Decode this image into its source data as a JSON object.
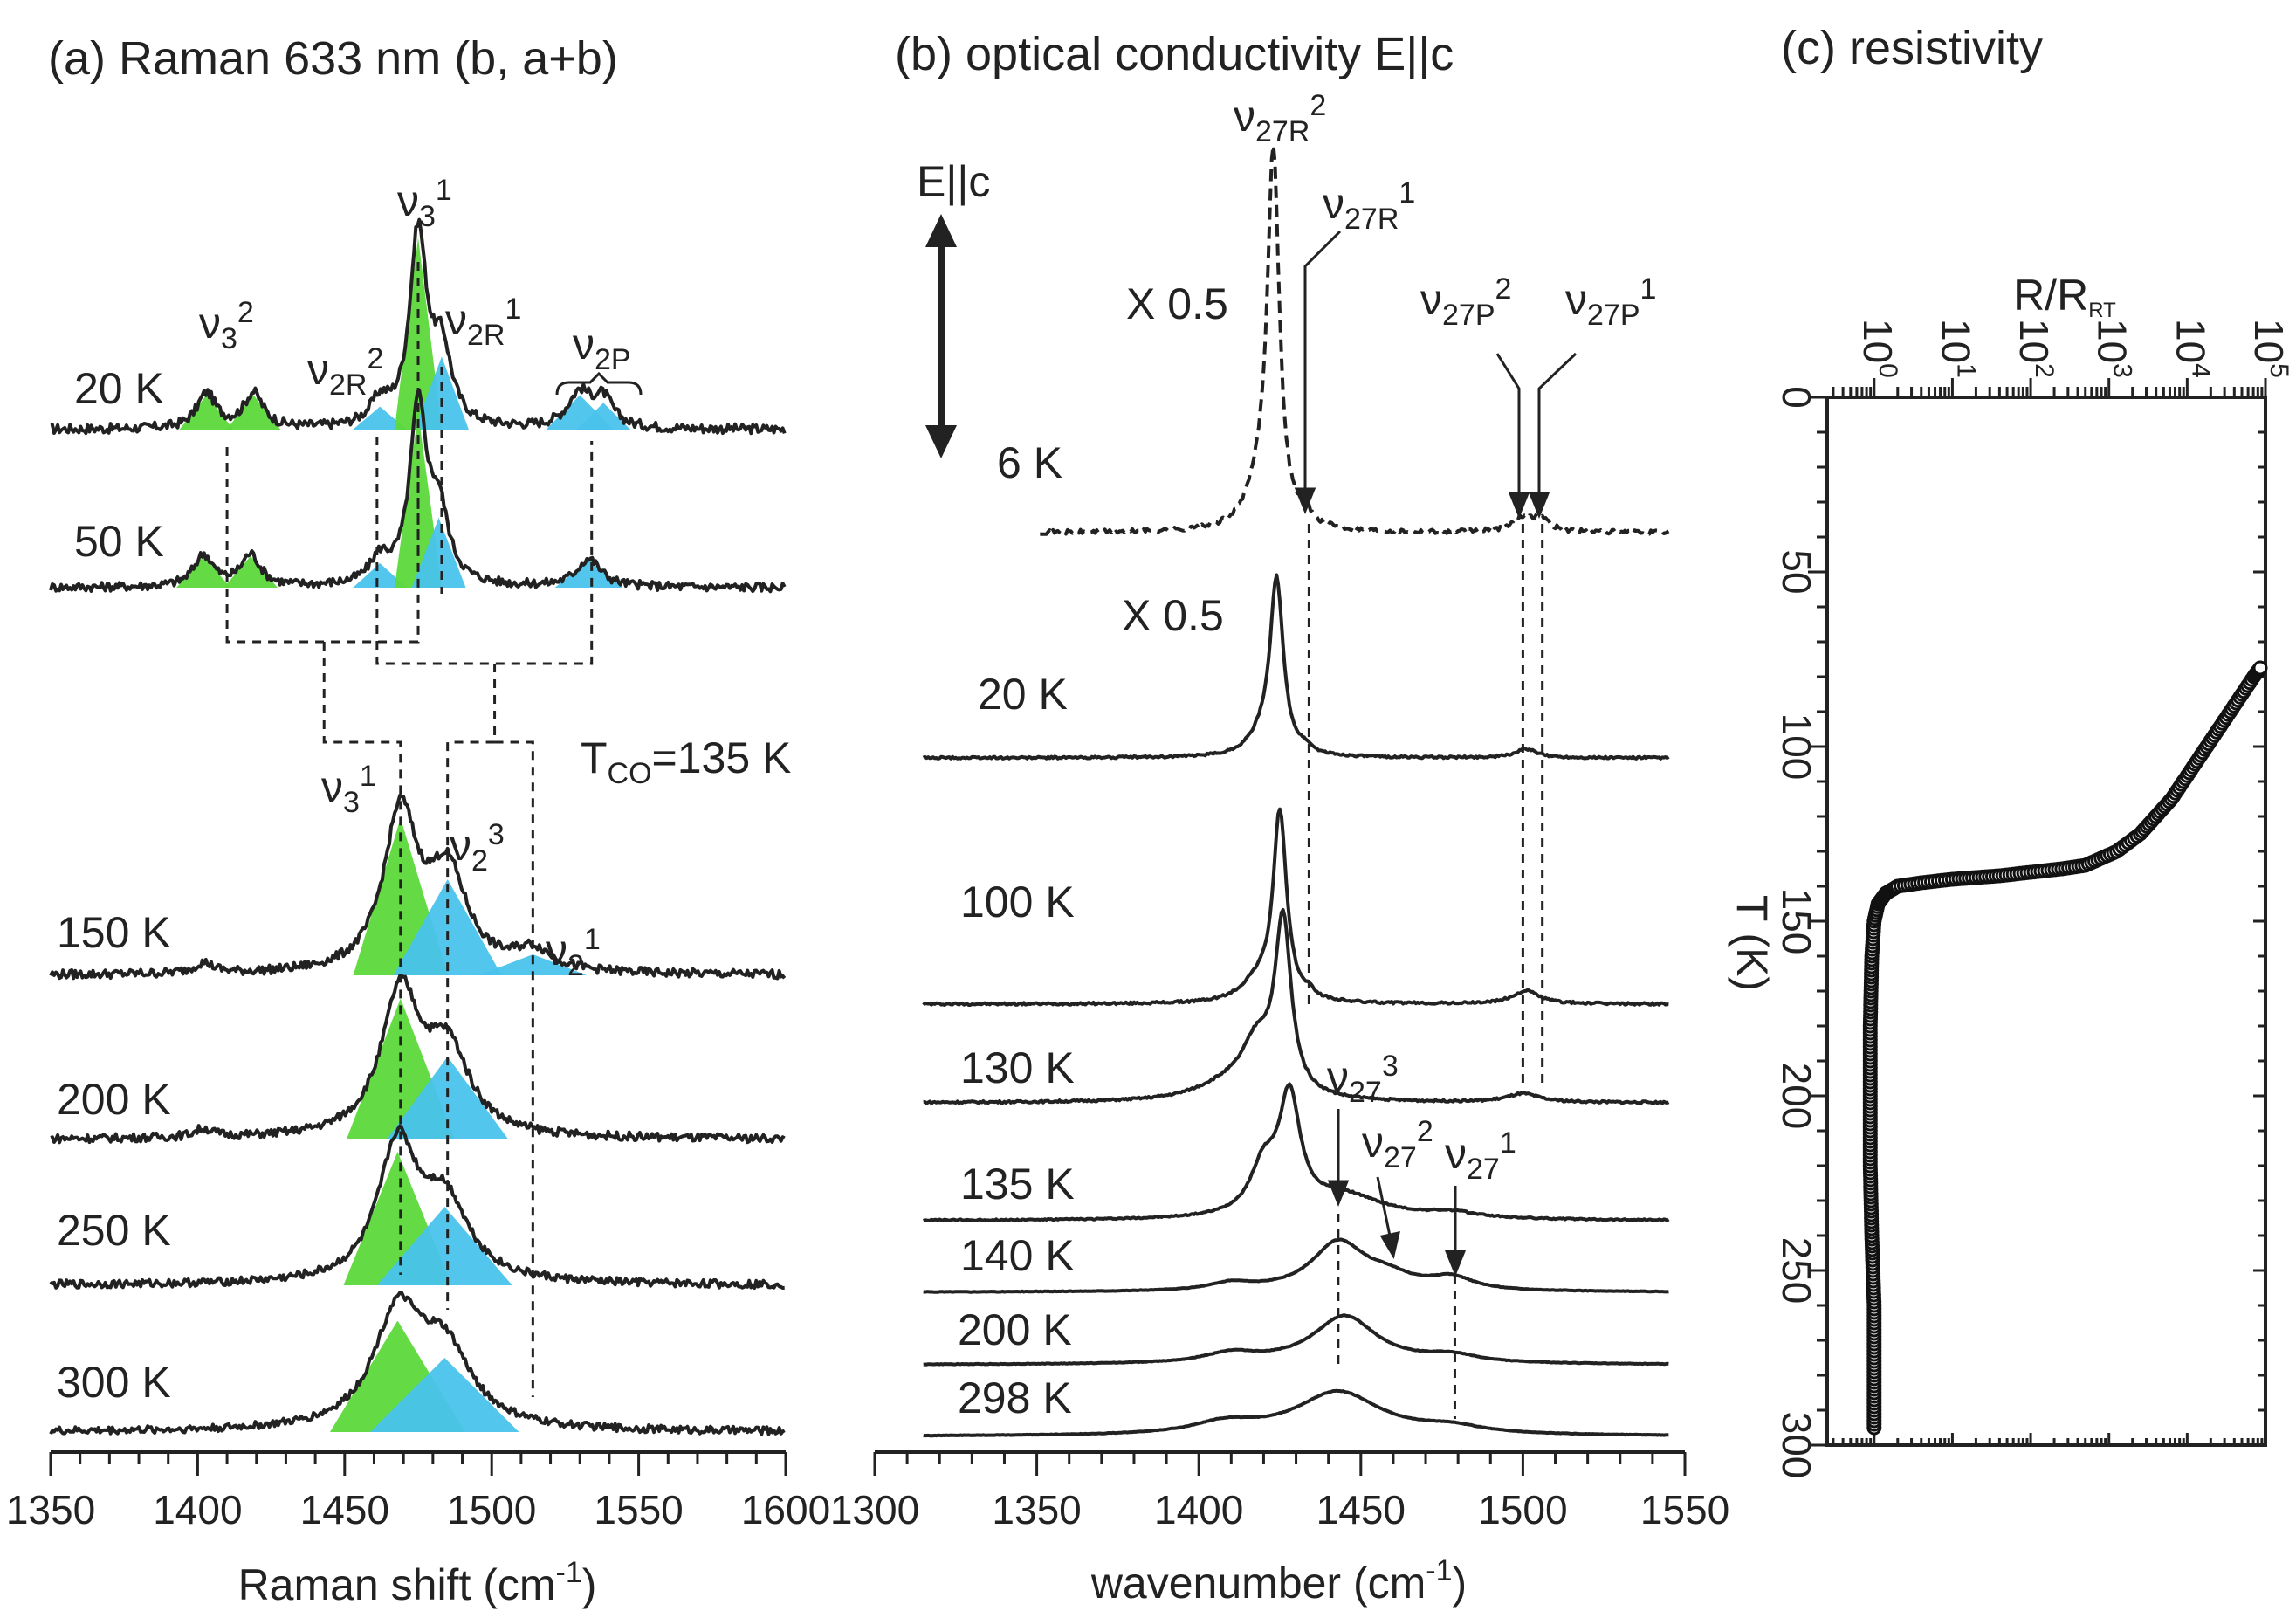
{
  "chart_data": [
    {
      "type": "line",
      "panel": "a",
      "title": "(a) Raman 633 nm (b, a+b)",
      "xlabel": "Raman shift (cm-1)",
      "xlim": [
        1350,
        1600
      ],
      "xticks": [
        1350,
        1400,
        1450,
        1500,
        1550,
        1600
      ],
      "tco_label": "TCO=135 K",
      "colors": {
        "green": "#5cd93a",
        "blue": "#49c3ec"
      },
      "series": [
        {
          "name": "20 K",
          "peaks": [
            {
              "x": 1403,
              "a": 0.18,
              "w": 4,
              "color": "green"
            },
            {
              "x": 1419,
              "a": 0.18,
              "w": 4,
              "color": "green"
            },
            {
              "x": 1462,
              "a": 0.12,
              "w": 4,
              "color": "blue"
            },
            {
              "x": 1475,
              "a": 1.0,
              "w": 3.5,
              "color": "green"
            },
            {
              "x": 1483,
              "a": 0.38,
              "w": 4,
              "color": "blue"
            },
            {
              "x": 1530,
              "a": 0.18,
              "w": 5,
              "color": "blue"
            },
            {
              "x": 1538,
              "a": 0.14,
              "w": 4,
              "color": "blue"
            }
          ]
        },
        {
          "name": "50 K",
          "peaks": [
            {
              "x": 1402,
              "a": 0.18,
              "w": 4,
              "color": "green"
            },
            {
              "x": 1418,
              "a": 0.18,
              "w": 4,
              "color": "green"
            },
            {
              "x": 1462,
              "a": 0.14,
              "w": 4,
              "color": "blue"
            },
            {
              "x": 1475,
              "a": 1.0,
              "w": 3.5,
              "color": "green"
            },
            {
              "x": 1482,
              "a": 0.4,
              "w": 4,
              "color": "blue"
            },
            {
              "x": 1533,
              "a": 0.16,
              "w": 5,
              "color": "blue"
            }
          ]
        },
        {
          "name": "150 K",
          "peaks": [
            {
              "x": 1469,
              "a": 0.9,
              "w": 7,
              "color": "green"
            },
            {
              "x": 1485,
              "a": 0.55,
              "w": 8,
              "color": "blue"
            },
            {
              "x": 1514,
              "a": 0.12,
              "w": 8,
              "color": "blue"
            },
            {
              "x": 1402,
              "a": 0.06,
              "w": 4,
              "color": "none"
            }
          ]
        },
        {
          "name": "200 K",
          "peaks": [
            {
              "x": 1469,
              "a": 0.85,
              "w": 8,
              "color": "green"
            },
            {
              "x": 1485,
              "a": 0.5,
              "w": 9,
              "color": "blue"
            },
            {
              "x": 1402,
              "a": 0.05,
              "w": 4,
              "color": "none"
            }
          ]
        },
        {
          "name": "250 K",
          "peaks": [
            {
              "x": 1468,
              "a": 0.85,
              "w": 8,
              "color": "green"
            },
            {
              "x": 1484,
              "a": 0.5,
              "w": 10,
              "color": "blue"
            }
          ]
        },
        {
          "name": "300 K",
          "peaks": [
            {
              "x": 1468,
              "a": 0.75,
              "w": 10,
              "color": "green"
            },
            {
              "x": 1484,
              "a": 0.5,
              "w": 11,
              "color": "blue"
            }
          ]
        }
      ]
    },
    {
      "type": "line",
      "panel": "b",
      "title": "(b) optical conductivity E||c",
      "xlabel": "wavenumber (cm-1)",
      "xlim": [
        1300,
        1550
      ],
      "xticks": [
        1300,
        1350,
        1400,
        1450,
        1500,
        1550
      ],
      "polarization_label": "E||c",
      "scale_labels": [
        "X 0.5",
        "X 0.5"
      ],
      "series": [
        {
          "name": "6 K",
          "style": "dashed",
          "peaks": [
            {
              "x": 1423,
              "a": 1.0,
              "w": 2.2
            },
            {
              "x": 1419,
              "a": 0.1,
              "w": 5
            },
            {
              "x": 1433,
              "a": 0.03,
              "w": 2
            },
            {
              "x": 1500,
              "a": 0.04,
              "w": 4
            },
            {
              "x": 1506,
              "a": 0.03,
              "w": 3
            }
          ]
        },
        {
          "name": "20 K",
          "style": "solid",
          "peaks": [
            {
              "x": 1424,
              "a": 1.0,
              "w": 2.5
            },
            {
              "x": 1419,
              "a": 0.08,
              "w": 5
            },
            {
              "x": 1433,
              "a": 0.03,
              "w": 2
            },
            {
              "x": 1501,
              "a": 0.05,
              "w": 4
            }
          ]
        },
        {
          "name": "100 K",
          "style": "solid",
          "peaks": [
            {
              "x": 1425,
              "a": 1.0,
              "w": 2.5
            },
            {
              "x": 1418,
              "a": 0.1,
              "w": 6
            },
            {
              "x": 1434,
              "a": 0.03,
              "w": 2
            },
            {
              "x": 1501,
              "a": 0.07,
              "w": 5
            }
          ]
        },
        {
          "name": "130 K",
          "style": "solid",
          "peaks": [
            {
              "x": 1426,
              "a": 1.0,
              "w": 3
            },
            {
              "x": 1418,
              "a": 0.3,
              "w": 6
            },
            {
              "x": 1408,
              "a": 0.08,
              "w": 12
            },
            {
              "x": 1500,
              "a": 0.05,
              "w": 6
            }
          ]
        },
        {
          "name": "135 K",
          "style": "solid",
          "peaks": [
            {
              "x": 1428,
              "a": 1.0,
              "w": 4
            },
            {
              "x": 1420,
              "a": 0.4,
              "w": 5
            },
            {
              "x": 1445,
              "a": 0.2,
              "w": 15
            },
            {
              "x": 1478,
              "a": 0.05,
              "w": 10
            }
          ]
        },
        {
          "name": "140 K",
          "style": "solid",
          "peaks": [
            {
              "x": 1443,
              "a": 1.0,
              "w": 10
            },
            {
              "x": 1458,
              "a": 0.25,
              "w": 10
            },
            {
              "x": 1478,
              "a": 0.25,
              "w": 8
            },
            {
              "x": 1410,
              "a": 0.15,
              "w": 8
            }
          ]
        },
        {
          "name": "200 K",
          "style": "solid",
          "peaks": [
            {
              "x": 1445,
              "a": 1.0,
              "w": 12
            },
            {
              "x": 1478,
              "a": 0.15,
              "w": 10
            },
            {
              "x": 1410,
              "a": 0.2,
              "w": 10
            }
          ]
        },
        {
          "name": "298 K",
          "style": "solid",
          "peaks": [
            {
              "x": 1443,
              "a": 1.0,
              "w": 16
            },
            {
              "x": 1478,
              "a": 0.15,
              "w": 12
            },
            {
              "x": 1408,
              "a": 0.25,
              "w": 12
            }
          ]
        }
      ]
    },
    {
      "type": "scatter",
      "panel": "c",
      "title": "(c) resistivity",
      "xlabel": "R/RRT",
      "ylabel": "T (K)",
      "xscale": "log",
      "xlim_exp": [
        -0.6,
        5
      ],
      "ylim": [
        0,
        300
      ],
      "ylim_direction": "inverted",
      "yticks": [
        0,
        50,
        100,
        150,
        200,
        250,
        300
      ],
      "xtick_exponents": [
        0,
        1,
        2,
        3,
        4,
        5
      ],
      "points_T_K": [
        295,
        280,
        260,
        240,
        220,
        200,
        180,
        160,
        150,
        145,
        142,
        140,
        139,
        138,
        137.5,
        137,
        136,
        135,
        134,
        130,
        125,
        120,
        115,
        110,
        105,
        100,
        95,
        90,
        85,
        80,
        77
      ],
      "points_log10_R": [
        0,
        0,
        0,
        -0.03,
        -0.05,
        -0.05,
        -0.05,
        -0.03,
        0,
        0.05,
        0.15,
        0.3,
        0.6,
        1.0,
        1.3,
        1.6,
        2.0,
        2.4,
        2.7,
        3.1,
        3.4,
        3.6,
        3.8,
        3.95,
        4.1,
        4.25,
        4.4,
        4.55,
        4.7,
        4.85,
        4.95
      ]
    }
  ],
  "annotations": {
    "a_tco_text": "TCO=135 K",
    "a_labels": {
      "nu3_2": "ν32",
      "nu2R_2": "ν2R2",
      "nu3_1_top": "ν31",
      "nu2R_1": "ν2R1",
      "nu2P": "ν2P",
      "nu3_1_bottom": "ν31",
      "nu2_3": "ν23",
      "nu2_1": "ν21"
    },
    "b_labels": {
      "nu27R_2": "ν27R2",
      "nu27R_1": "ν27R1",
      "nu27P_2": "ν27P2",
      "nu27P_1": "ν27P1",
      "nu27_3": "ν273",
      "nu27_2": "ν272",
      "nu27_1": "ν271"
    }
  },
  "text": {
    "a_temps": [
      "20 K",
      "50 K",
      "150 K",
      "200 K",
      "250 K",
      "300 K"
    ],
    "b_temps": [
      "6 K",
      "20 K",
      "100 K",
      "130 K",
      "135 K",
      "140 K",
      "200 K",
      "298 K"
    ],
    "c_tick_base": "10"
  }
}
